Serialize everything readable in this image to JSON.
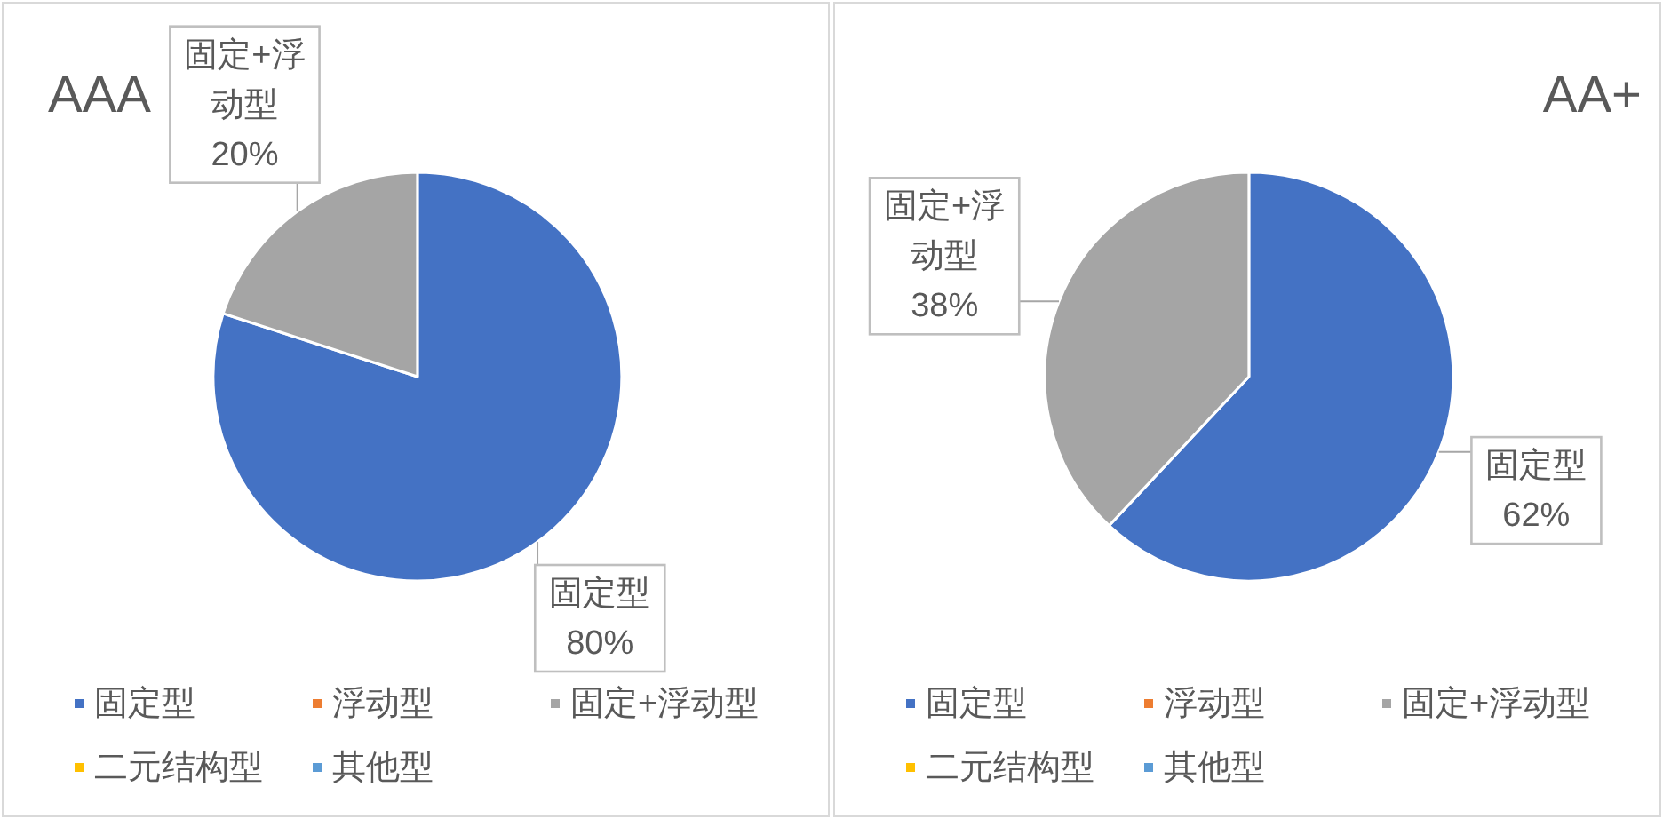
{
  "chart_data": [
    {
      "type": "pie",
      "title": "AAA",
      "categories": [
        "固定型",
        "浮动型",
        "固定+浮动型",
        "二元结构型",
        "其他型"
      ],
      "values": [
        80,
        0,
        20,
        0,
        0
      ],
      "colors": [
        "#4472c4",
        "#ed7d31",
        "#a5a5a5",
        "#ffc000",
        "#5b9bd5"
      ],
      "value_labels": [
        "80%",
        null,
        "20%",
        null,
        null
      ],
      "legend": "bottom"
    },
    {
      "type": "pie",
      "title": "AA+",
      "categories": [
        "固定型",
        "浮动型",
        "固定+浮动型",
        "二元结构型",
        "其他型"
      ],
      "values": [
        62,
        0,
        38,
        0,
        0
      ],
      "colors": [
        "#4472c4",
        "#ed7d31",
        "#a5a5a5",
        "#ffc000",
        "#5b9bd5"
      ],
      "value_labels": [
        "62%",
        null,
        "38%",
        null,
        null
      ],
      "legend": "bottom"
    }
  ]
}
